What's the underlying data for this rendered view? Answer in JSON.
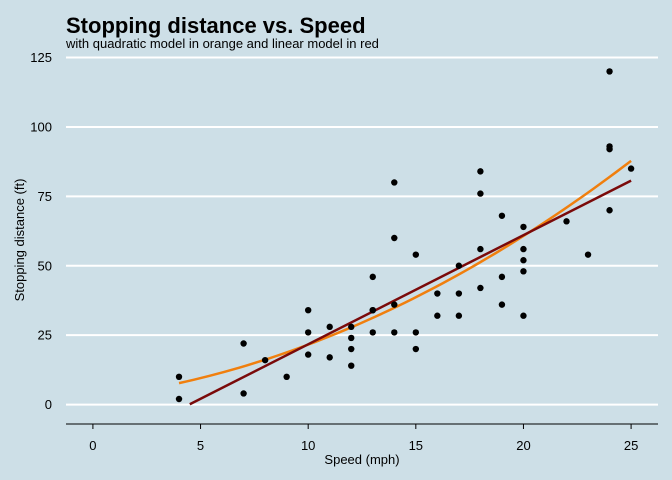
{
  "chart_data": {
    "type": "scatter",
    "title": "Stopping distance vs. Speed",
    "subtitle": "with quadratic model in orange and linear model in red",
    "xlabel": "Speed (mph)",
    "ylabel": "Stopping distance (ft)",
    "xlim": [
      -1.25,
      26.25
    ],
    "ylim": [
      -7,
      127
    ],
    "x_ticks": [
      0,
      5,
      10,
      15,
      20,
      25
    ],
    "y_ticks": [
      0,
      25,
      50,
      75,
      100,
      125
    ],
    "grid": "horizontal",
    "background": "#cddfe7",
    "gridline_color": "#ffffff",
    "point_color": "#000000",
    "series": [
      {
        "kind": "points",
        "x": [
          4,
          4,
          7,
          7,
          8,
          9,
          10,
          10,
          10,
          11,
          11,
          12,
          12,
          12,
          12,
          13,
          13,
          13,
          13,
          14,
          14,
          14,
          14,
          15,
          15,
          15,
          16,
          16,
          17,
          17,
          17,
          18,
          18,
          18,
          18,
          19,
          19,
          19,
          20,
          20,
          20,
          20,
          20,
          22,
          23,
          24,
          24,
          24,
          24,
          25
        ],
        "y": [
          2,
          10,
          4,
          22,
          16,
          10,
          18,
          26,
          34,
          17,
          28,
          14,
          20,
          24,
          28,
          26,
          34,
          34,
          46,
          26,
          36,
          60,
          80,
          20,
          26,
          54,
          32,
          40,
          32,
          40,
          50,
          42,
          56,
          76,
          84,
          36,
          46,
          68,
          32,
          48,
          52,
          56,
          64,
          66,
          54,
          70,
          92,
          93,
          120,
          85
        ]
      },
      {
        "kind": "quadratic-fit",
        "color": "#f07f0e",
        "x_range": [
          4,
          25
        ],
        "coefficients": [
          2.47,
          0.913,
          0.1
        ]
      },
      {
        "kind": "linear-fit",
        "color": "#7a0a0a",
        "x_range": [
          4.5,
          25
        ],
        "intercept": -17.58,
        "slope": 3.93
      }
    ]
  }
}
